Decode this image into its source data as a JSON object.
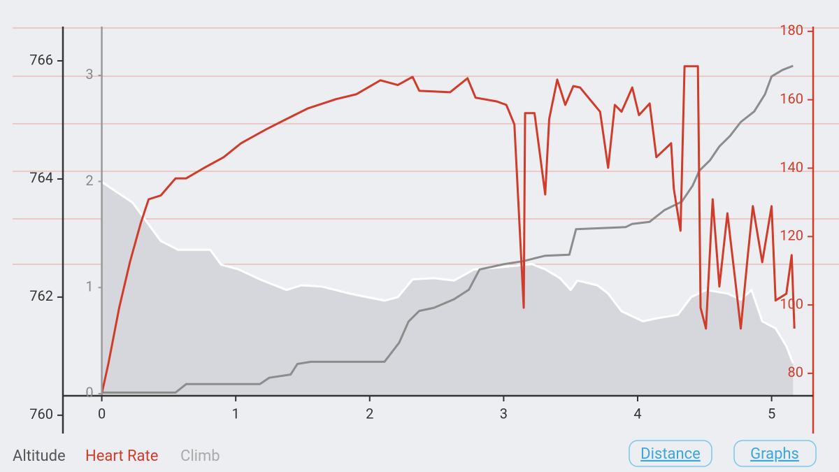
{
  "chart_data": {
    "type": "line",
    "xlim": [
      -0.29,
      5.31
    ],
    "xticks": [
      0,
      1,
      2,
      3,
      4,
      5
    ],
    "ylim": [
      759.69,
      766.58
    ],
    "yticks": [
      760,
      762,
      764,
      766
    ],
    "y2lim": [
      62.4,
      181.4
    ],
    "y2ticks": [
      80,
      100,
      120,
      140,
      160,
      180
    ],
    "y3lim": [
      -0.376,
      3.46
    ],
    "y3ticks": [
      0,
      1,
      2,
      3
    ],
    "series": [
      {
        "name": "Altitude",
        "color": "#ffffff",
        "fill": "#d5d7dc",
        "axis": "y",
        "x": [
          0,
          0.23,
          0.44,
          0.57,
          0.81,
          0.89,
          1.02,
          1.18,
          1.38,
          1.49,
          1.64,
          1.85,
          2.11,
          2.21,
          2.32,
          2.48,
          2.63,
          2.78,
          3.0,
          3.21,
          3.31,
          3.42,
          3.5,
          3.55,
          3.7,
          3.78,
          3.88,
          4.04,
          4.14,
          4.3,
          4.4,
          4.51,
          4.67,
          4.77,
          4.85,
          4.93,
          5.03,
          5.11,
          5.16
        ],
        "values": [
          763.95,
          763.6,
          762.95,
          762.8,
          762.8,
          762.55,
          762.47,
          762.3,
          762.12,
          762.2,
          762.18,
          762.06,
          761.94,
          762.0,
          762.3,
          762.32,
          762.28,
          762.47,
          762.51,
          762.56,
          762.47,
          762.32,
          762.12,
          762.28,
          762.2,
          762.06,
          761.76,
          761.59,
          761.64,
          761.7,
          762.0,
          762.12,
          762.06,
          761.96,
          762.12,
          761.59,
          761.47,
          761.17,
          760.88
        ]
      },
      {
        "name": "Heart Rate",
        "color": "#d13b2a",
        "axis": "y2",
        "x": [
          0,
          0.05,
          0.13,
          0.21,
          0.29,
          0.35,
          0.44,
          0.55,
          0.63,
          0.76,
          0.91,
          1.04,
          1.23,
          1.38,
          1.54,
          1.75,
          1.9,
          2.08,
          2.21,
          2.32,
          2.37,
          2.6,
          2.73,
          2.79,
          2.95,
          3.02,
          3.08,
          3.15,
          3.16,
          3.23,
          3.31,
          3.34,
          3.4,
          3.46,
          3.52,
          3.57,
          3.72,
          3.78,
          3.83,
          3.88,
          3.96,
          4.01,
          4.09,
          4.14,
          4.25,
          4.27,
          4.32,
          4.35,
          4.45,
          4.47,
          4.51,
          4.56,
          4.61,
          4.67,
          4.74,
          4.77,
          4.82,
          4.86,
          4.93,
          5.0,
          5.03,
          5.11,
          5.15,
          5.17
        ],
        "values": [
          74.1,
          82.9,
          99.2,
          112.5,
          123.8,
          130.9,
          132,
          137,
          137,
          140,
          143.2,
          147.3,
          151.4,
          154.4,
          157.5,
          160.2,
          161.6,
          165.7,
          164.3,
          166.7,
          162.6,
          162.2,
          166.3,
          160.6,
          159.5,
          158.5,
          152.8,
          99.2,
          156.1,
          156.1,
          132.3,
          154.4,
          165.9,
          158.5,
          164.0,
          163.6,
          156.5,
          140.1,
          158.5,
          156.5,
          163.6,
          155.5,
          158.9,
          143.2,
          147.3,
          134,
          121.7,
          169.8,
          169.8,
          99.2,
          93.1,
          130.9,
          105.4,
          126.8,
          103.3,
          93.1,
          113.5,
          128.9,
          112.5,
          128.9,
          101.3,
          103.3,
          114.6,
          93.1
        ]
      },
      {
        "name": "Climb",
        "color": "#8c8c8c",
        "axis": "y3",
        "x": [
          0,
          0.55,
          0.63,
          1.18,
          1.25,
          1.41,
          1.46,
          1.56,
          2.11,
          2.22,
          2.29,
          2.37,
          2.48,
          2.63,
          2.74,
          2.82,
          3.0,
          3.15,
          3.31,
          3.49,
          3.54,
          3.91,
          3.96,
          4.09,
          4.2,
          4.33,
          4.41,
          4.46,
          4.54,
          4.61,
          4.69,
          4.77,
          4.87,
          4.95,
          5.0,
          5.08,
          5.16
        ],
        "values": [
          0.01,
          0.01,
          0.09,
          0.09,
          0.15,
          0.18,
          0.28,
          0.3,
          0.3,
          0.48,
          0.68,
          0.78,
          0.81,
          0.89,
          0.98,
          1.17,
          1.22,
          1.25,
          1.3,
          1.31,
          1.55,
          1.57,
          1.6,
          1.62,
          1.73,
          1.81,
          1.96,
          2.1,
          2.2,
          2.33,
          2.43,
          2.56,
          2.66,
          2.82,
          2.99,
          3.05,
          3.09
        ]
      }
    ],
    "buttons": [
      "Distance",
      "Graphs"
    ]
  }
}
